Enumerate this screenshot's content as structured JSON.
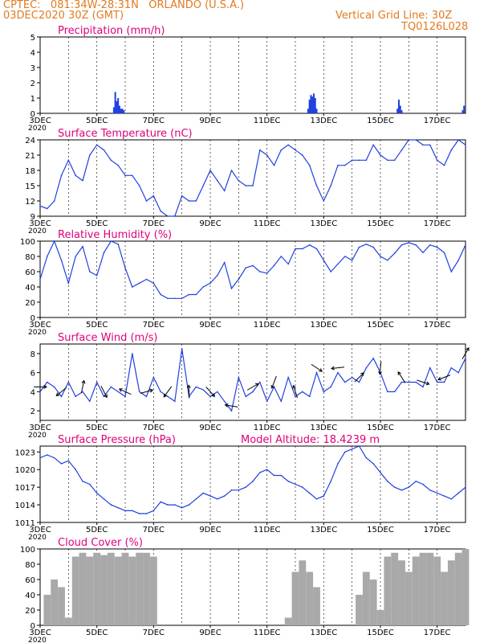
{
  "header": {
    "line1": "CPTEC:   081:34W-28:31N   ORLANDO (U.S.A.)",
    "line2": "03DEC2020 30Z (GMT)",
    "grid_note": "Vertical Grid Line: 30Z",
    "run_id": "TQ0126L028"
  },
  "colors": {
    "header": "#e07b20",
    "panel_title": "#e0007a",
    "series": "#2040e0",
    "bars": "#2040e0",
    "cloud": "#a9a9a9",
    "grid": "#000000"
  },
  "x_ticks": [
    "3DEC",
    "5DEC",
    "7DEC",
    "9DEC",
    "11DEC",
    "13DEC",
    "15DEC",
    "17DEC"
  ],
  "tick_overflow_label": "2020",
  "chart_data": [
    {
      "type": "bar",
      "title": "Precipitation (mm/h)",
      "x_unit": "days since 03DEC2020 00Z",
      "xlim": [
        0,
        15
      ],
      "ylim": [
        0,
        5
      ],
      "yticks": [
        0,
        1,
        2,
        3,
        4,
        5
      ],
      "x": [
        2.6,
        2.65,
        2.7,
        2.75,
        2.8,
        2.85,
        2.9,
        2.95,
        9.45,
        9.5,
        9.55,
        9.6,
        9.65,
        9.7,
        9.75,
        12.6,
        12.65,
        12.7,
        12.75,
        14.9,
        14.95
      ],
      "values": [
        0.4,
        1.4,
        0.8,
        1.0,
        0.5,
        0.3,
        0.3,
        0.2,
        0.3,
        0.9,
        1.2,
        1.1,
        1.3,
        1.0,
        0.3,
        0.3,
        0.9,
        0.5,
        0.2,
        0.2,
        0.5
      ]
    },
    {
      "type": "line",
      "title": "Surface Temperature (nC)",
      "xlim": [
        0,
        15
      ],
      "ylim": [
        9,
        24
      ],
      "yticks": [
        9,
        12,
        15,
        18,
        21,
        24
      ],
      "x": [
        0,
        0.25,
        0.5,
        0.75,
        1,
        1.25,
        1.5,
        1.75,
        2,
        2.25,
        2.5,
        2.75,
        3,
        3.25,
        3.5,
        3.75,
        4,
        4.25,
        4.5,
        4.75,
        5,
        5.25,
        5.5,
        5.75,
        6,
        6.25,
        6.5,
        6.75,
        7,
        7.25,
        7.5,
        7.75,
        8,
        8.25,
        8.5,
        8.75,
        9,
        9.25,
        9.5,
        9.75,
        10,
        10.25,
        10.5,
        10.75,
        11,
        11.25,
        11.5,
        11.75,
        12,
        12.25,
        12.5,
        12.75,
        13,
        13.25,
        13.5,
        13.75,
        14,
        14.25,
        14.5,
        14.75,
        15
      ],
      "values": [
        11,
        10.5,
        12,
        17,
        20,
        17,
        16,
        21,
        23,
        22,
        20,
        19,
        17,
        17,
        15,
        12,
        13,
        10,
        9,
        9,
        13,
        12,
        12,
        15,
        18,
        16,
        14,
        18,
        16,
        15,
        15,
        22,
        21,
        19,
        22,
        23,
        22,
        21,
        19,
        15,
        12,
        15,
        19,
        19,
        20,
        20,
        20,
        23,
        21,
        20,
        20,
        22,
        24,
        24,
        23,
        23,
        20,
        19,
        22,
        24,
        23
      ]
    },
    {
      "type": "line",
      "title": "Relative Humidity (%)",
      "xlim": [
        0,
        15
      ],
      "ylim": [
        0,
        100
      ],
      "yticks": [
        0,
        20,
        40,
        60,
        80,
        100
      ],
      "x": [
        0,
        0.25,
        0.5,
        0.75,
        1,
        1.25,
        1.5,
        1.75,
        2,
        2.25,
        2.5,
        2.75,
        3,
        3.25,
        3.5,
        3.75,
        4,
        4.25,
        4.5,
        4.75,
        5,
        5.25,
        5.5,
        5.75,
        6,
        6.25,
        6.5,
        6.75,
        7,
        7.25,
        7.5,
        7.75,
        8,
        8.25,
        8.5,
        8.75,
        9,
        9.25,
        9.5,
        9.75,
        10,
        10.25,
        10.5,
        10.75,
        11,
        11.25,
        11.5,
        11.75,
        12,
        12.25,
        12.5,
        12.75,
        13,
        13.25,
        13.5,
        13.75,
        14,
        14.25,
        14.5,
        14.75,
        15
      ],
      "values": [
        50,
        80,
        100,
        75,
        45,
        80,
        93,
        60,
        55,
        85,
        100,
        96,
        65,
        40,
        45,
        50,
        45,
        30,
        25,
        25,
        25,
        30,
        30,
        40,
        45,
        55,
        72,
        38,
        50,
        65,
        68,
        60,
        58,
        68,
        80,
        70,
        90,
        90,
        95,
        90,
        75,
        60,
        70,
        80,
        75,
        92,
        96,
        92,
        80,
        75,
        84,
        95,
        98,
        95,
        85,
        95,
        92,
        85,
        60,
        75,
        95
      ]
    },
    {
      "type": "line",
      "title": "Surface Wind (m/s)",
      "xlim": [
        0,
        15
      ],
      "ylim": [
        1,
        9
      ],
      "yticks": [
        2,
        4,
        6,
        8
      ],
      "x": [
        0,
        0.25,
        0.5,
        0.75,
        1,
        1.25,
        1.5,
        1.75,
        2,
        2.25,
        2.5,
        2.75,
        3,
        3.25,
        3.5,
        3.75,
        4,
        4.25,
        4.5,
        4.75,
        5,
        5.25,
        5.5,
        5.75,
        6,
        6.25,
        6.5,
        6.75,
        7,
        7.25,
        7.5,
        7.75,
        8,
        8.25,
        8.5,
        8.75,
        9,
        9.25,
        9.5,
        9.75,
        10,
        10.25,
        10.5,
        10.75,
        11,
        11.25,
        11.5,
        11.75,
        12,
        12.25,
        12.5,
        12.75,
        13,
        13.25,
        13.5,
        13.75,
        14,
        14.25,
        14.5,
        14.75,
        15
      ],
      "values": [
        4,
        5,
        4.5,
        3.5,
        5,
        3.5,
        4,
        3,
        5,
        3.5,
        4.5,
        4,
        3.5,
        8,
        4,
        3.5,
        5.5,
        4,
        3.5,
        3,
        8.5,
        3.5,
        4.5,
        4.2,
        3.5,
        4,
        3,
        2,
        5.5,
        3.5,
        4,
        5,
        3,
        4.5,
        3,
        5.5,
        3.5,
        4,
        3.5,
        6,
        4,
        4.5,
        6,
        5,
        5.5,
        5,
        6.5,
        7.5,
        6,
        4,
        4,
        5,
        5,
        5,
        4.5,
        6.5,
        5,
        5,
        6.5,
        6,
        7.5
      ]
    },
    {
      "type": "line",
      "title": "Surface Pressure (hPa)",
      "subtitle": "Model Altitude: 18.4239  m",
      "xlim": [
        0,
        15
      ],
      "ylim": [
        1011,
        1024
      ],
      "yticks": [
        1011,
        1014,
        1017,
        1020,
        1023
      ],
      "x": [
        0,
        0.25,
        0.5,
        0.75,
        1,
        1.25,
        1.5,
        1.75,
        2,
        2.25,
        2.5,
        2.75,
        3,
        3.25,
        3.5,
        3.75,
        4,
        4.25,
        4.5,
        4.75,
        5,
        5.25,
        5.5,
        5.75,
        6,
        6.25,
        6.5,
        6.75,
        7,
        7.25,
        7.5,
        7.75,
        8,
        8.25,
        8.5,
        8.75,
        9,
        9.25,
        9.5,
        9.75,
        10,
        10.25,
        10.5,
        10.75,
        11,
        11.25,
        11.5,
        11.75,
        12,
        12.25,
        12.5,
        12.75,
        13,
        13.25,
        13.5,
        13.75,
        14,
        14.25,
        14.5,
        14.75,
        15
      ],
      "values": [
        1022,
        1022.5,
        1022,
        1021,
        1021.5,
        1020,
        1018,
        1017.5,
        1016,
        1015,
        1014,
        1013.5,
        1013,
        1013,
        1012.5,
        1012.5,
        1013,
        1014.5,
        1014,
        1014,
        1013.5,
        1014,
        1015,
        1016,
        1015.5,
        1015,
        1015.5,
        1016.5,
        1016.5,
        1017,
        1018,
        1019.5,
        1020,
        1019,
        1019,
        1018,
        1017.5,
        1017,
        1016,
        1015,
        1015.5,
        1018,
        1021,
        1023,
        1023.5,
        1024,
        1022,
        1021,
        1019.5,
        1018,
        1017,
        1016.5,
        1017,
        1018,
        1017.5,
        1016.5,
        1016,
        1015.5,
        1015,
        1016,
        1017
      ]
    },
    {
      "type": "area",
      "title": "Cloud Cover (%)",
      "xlim": [
        0,
        15
      ],
      "ylim": [
        0,
        100
      ],
      "yticks": [
        0,
        20,
        40,
        60,
        80,
        100
      ],
      "x": [
        0,
        0.25,
        0.5,
        0.75,
        1,
        1.25,
        1.5,
        1.75,
        2,
        2.25,
        2.5,
        2.75,
        3,
        3.25,
        3.5,
        3.75,
        4,
        4.25,
        4.5,
        4.75,
        5,
        5.25,
        5.5,
        5.75,
        6,
        6.25,
        6.5,
        6.75,
        7,
        7.25,
        7.5,
        7.75,
        8,
        8.25,
        8.5,
        8.75,
        9,
        9.25,
        9.5,
        9.75,
        10,
        10.25,
        10.5,
        10.75,
        11,
        11.25,
        11.5,
        11.75,
        12,
        12.25,
        12.5,
        12.75,
        13,
        13.25,
        13.5,
        13.75,
        14,
        14.25,
        14.5,
        14.75,
        15
      ],
      "values": [
        0,
        40,
        60,
        50,
        10,
        90,
        95,
        90,
        95,
        92,
        95,
        90,
        95,
        90,
        95,
        95,
        90,
        0,
        0,
        0,
        0,
        0,
        0,
        0,
        0,
        0,
        0,
        0,
        0,
        0,
        0,
        0,
        0,
        0,
        0,
        10,
        70,
        85,
        70,
        50,
        0,
        0,
        0,
        0,
        0,
        40,
        70,
        60,
        20,
        90,
        95,
        85,
        70,
        90,
        95,
        95,
        90,
        70,
        85,
        95,
        100
      ]
    }
  ]
}
